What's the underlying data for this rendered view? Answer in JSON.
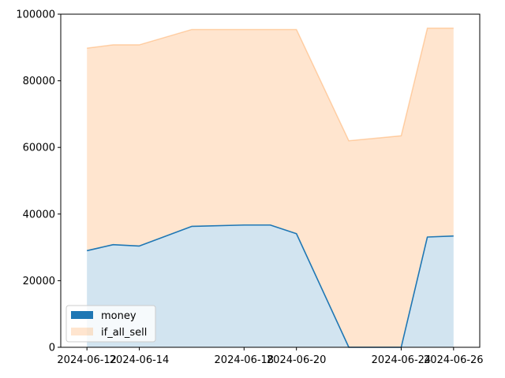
{
  "chart_data": {
    "type": "area",
    "x": [
      "2024-06-12",
      "2024-06-13",
      "2024-06-14",
      "2024-06-16",
      "2024-06-18",
      "2024-06-19",
      "2024-06-20",
      "2024-06-22",
      "2024-06-24",
      "2024-06-25",
      "2024-06-26"
    ],
    "series": [
      {
        "name": "money",
        "values": [
          29000,
          30800,
          30400,
          36300,
          36700,
          36700,
          34100,
          0,
          0,
          33100,
          33400
        ],
        "color": "#1f77b4"
      },
      {
        "name": "if_all_sell",
        "values": [
          89800,
          90800,
          90800,
          95400,
          95400,
          95400,
          95400,
          62000,
          63500,
          95800,
          95800
        ],
        "color": "#ff7f0e"
      }
    ],
    "xlim": [
      "2024-06-11",
      "2024-06-27"
    ],
    "ylim": [
      0,
      100000
    ],
    "x_ticks": [
      "2024-06-12",
      "2024-06-14",
      "2024-06-18",
      "2024-06-20",
      "2024-06-24",
      "2024-06-26"
    ],
    "y_ticks": [
      0,
      20000,
      40000,
      60000,
      80000,
      100000
    ],
    "y_tick_labels": [
      "0",
      "20000",
      "40000",
      "60000",
      "80000",
      "100000"
    ],
    "legend": "lower-left",
    "grid": false
  }
}
